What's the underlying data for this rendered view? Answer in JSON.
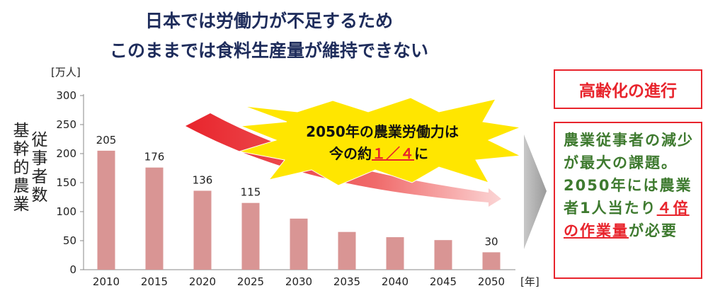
{
  "title_line1": "日本では労働力が不足するため",
  "title_line2": "このままでは食料生産量が維持できない",
  "chart_data": {
    "type": "bar",
    "categories": [
      "2010",
      "2015",
      "2020",
      "2025",
      "2030",
      "2035",
      "2040",
      "2045",
      "2050"
    ],
    "values": [
      205,
      176,
      136,
      115,
      88,
      65,
      56,
      51,
      30
    ],
    "data_labels": [
      "205",
      "176",
      "136",
      "115",
      "",
      "",
      "",
      "",
      "30"
    ],
    "ylabel": "基幹的農業従事者数",
    "y_unit": "[万人]",
    "x_unit": "[年]",
    "ylim": [
      0,
      300
    ],
    "yticks": [
      0,
      50,
      100,
      150,
      200,
      250,
      300
    ],
    "bar_color": "#d99594"
  },
  "starburst": {
    "line1": "2050年の農業労働力は",
    "line2_prefix": "今の約",
    "line2_highlight": "１／４",
    "line2_suffix": "に"
  },
  "callout": {
    "title": "高齢化の進行",
    "body_part1": "農業従事者の減少が最大の課題。2050年には農業者1人当たり",
    "body_highlight1": "４倍の作業量",
    "body_part2": "が必要"
  }
}
